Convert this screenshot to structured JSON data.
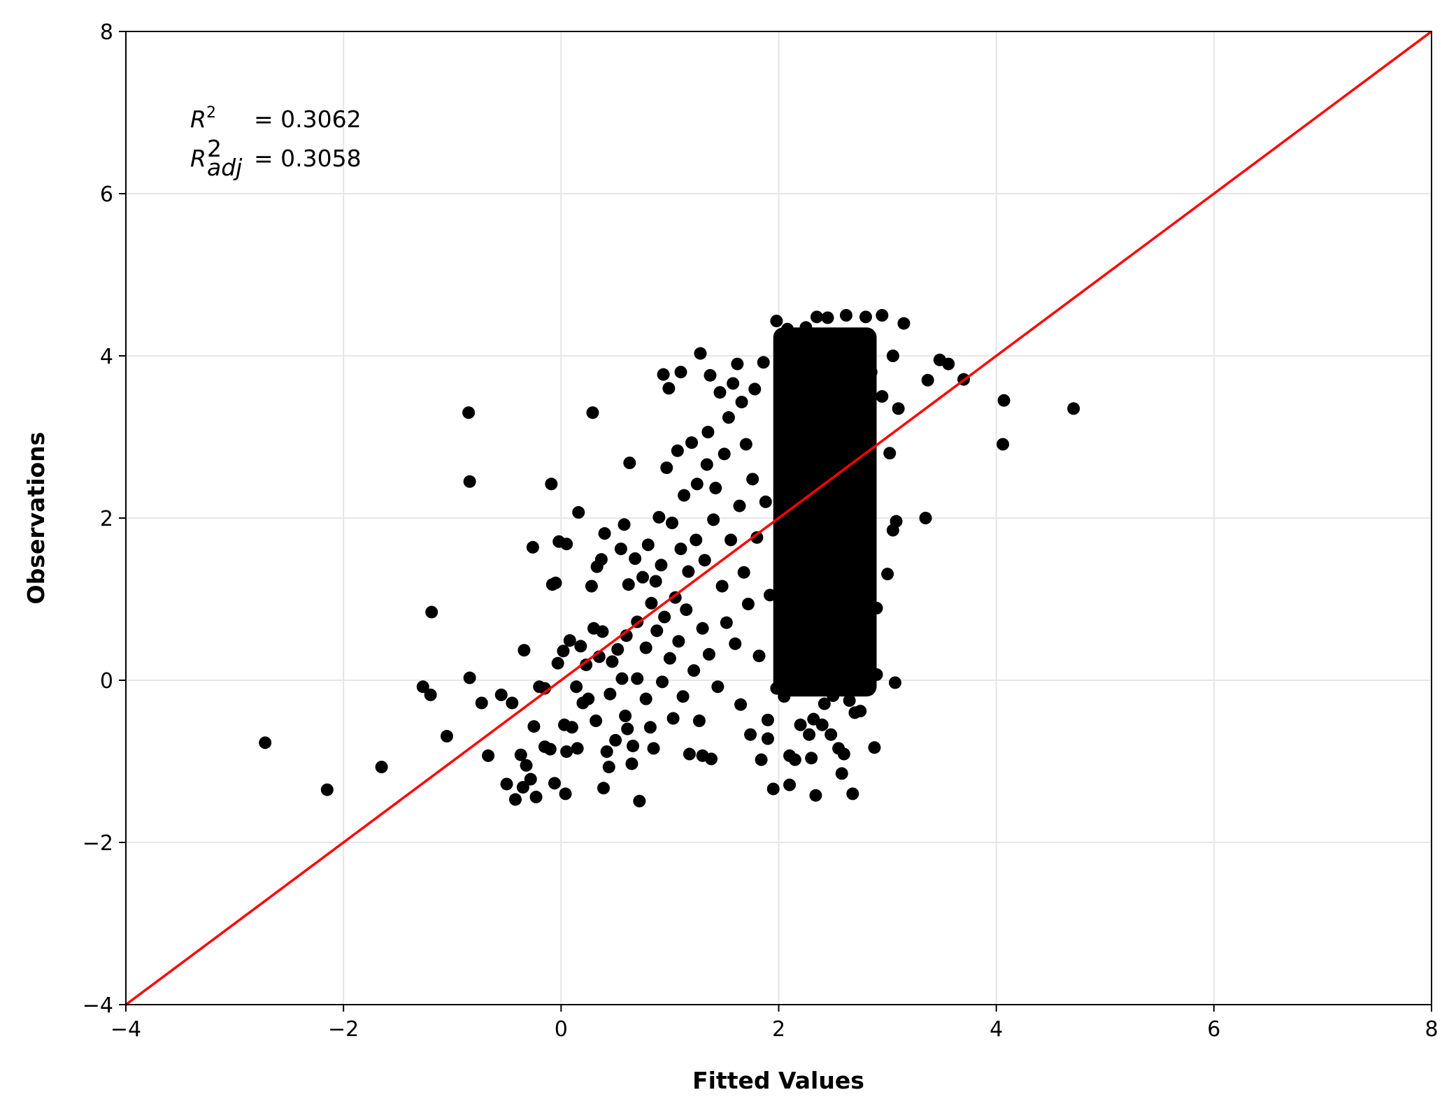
{
  "chart_data": {
    "type": "scatter",
    "title": "",
    "xlabel": "Fitted Values",
    "ylabel": "Observations",
    "xlim": [
      -4,
      8
    ],
    "ylim": [
      -4,
      8
    ],
    "x_ticks": [
      -4,
      -2,
      0,
      2,
      4,
      6,
      8
    ],
    "y_ticks": [
      -4,
      -2,
      0,
      2,
      4,
      6,
      8
    ],
    "x_tick_labels": [
      "−4",
      "−2",
      "0",
      "2",
      "4",
      "6",
      "8"
    ],
    "y_tick_labels": [
      "−4",
      "−2",
      "0",
      "2",
      "4",
      "6",
      "8"
    ],
    "grid": true,
    "colors": {
      "points": "#000000",
      "reference_line": "#ff0000",
      "grid": "#e6e6e6"
    },
    "annotations": {
      "r2_symbol": "R",
      "r2_sup": "2",
      "r2_text": "= 0.3062",
      "r2adj_symbol": "R",
      "r2adj_sup": "2",
      "r2adj_sub": "adj",
      "r2adj_text": "= 0.3058"
    },
    "reference_line": {
      "x": [
        -4,
        8
      ],
      "y": [
        -4,
        8
      ]
    },
    "dense_cluster": {
      "x_range": [
        1.95,
        2.9
      ],
      "y_range": [
        -0.2,
        4.35
      ]
    },
    "points": [
      [
        -2.72,
        -0.77
      ],
      [
        -2.15,
        -1.35
      ],
      [
        -1.65,
        -1.07
      ],
      [
        -1.27,
        -0.08
      ],
      [
        -1.2,
        -0.18
      ],
      [
        -1.19,
        0.84
      ],
      [
        -1.05,
        -0.69
      ],
      [
        -0.85,
        3.3
      ],
      [
        -0.84,
        2.45
      ],
      [
        -0.84,
        0.03
      ],
      [
        -0.73,
        -0.28
      ],
      [
        -0.67,
        -0.93
      ],
      [
        -0.55,
        -0.18
      ],
      [
        -0.5,
        -1.28
      ],
      [
        -0.45,
        -0.28
      ],
      [
        -0.42,
        -1.47
      ],
      [
        -0.37,
        -0.92
      ],
      [
        -0.35,
        -1.32
      ],
      [
        -0.34,
        0.37
      ],
      [
        -0.32,
        -1.05
      ],
      [
        -0.28,
        -1.22
      ],
      [
        -0.26,
        1.64
      ],
      [
        -0.25,
        -0.57
      ],
      [
        -0.23,
        -1.44
      ],
      [
        -0.2,
        -0.08
      ],
      [
        -0.15,
        -0.1
      ],
      [
        -0.15,
        -0.82
      ],
      [
        -0.1,
        -0.85
      ],
      [
        -0.09,
        2.42
      ],
      [
        -0.08,
        1.18
      ],
      [
        -0.06,
        -1.27
      ],
      [
        -0.05,
        1.2
      ],
      [
        -0.03,
        0.21
      ],
      [
        -0.02,
        1.71
      ],
      [
        0.02,
        0.36
      ],
      [
        0.03,
        -0.55
      ],
      [
        0.04,
        -1.4
      ],
      [
        0.05,
        1.68
      ],
      [
        0.05,
        -0.88
      ],
      [
        0.08,
        0.49
      ],
      [
        0.1,
        -0.58
      ],
      [
        0.14,
        -0.08
      ],
      [
        0.15,
        -0.84
      ],
      [
        0.16,
        2.07
      ],
      [
        0.18,
        0.42
      ],
      [
        0.2,
        -0.28
      ],
      [
        0.23,
        0.19
      ],
      [
        0.25,
        -0.23
      ],
      [
        0.28,
        1.16
      ],
      [
        0.29,
        3.3
      ],
      [
        0.3,
        0.64
      ],
      [
        0.32,
        -0.5
      ],
      [
        0.33,
        1.4
      ],
      [
        0.35,
        0.29
      ],
      [
        0.37,
        1.49
      ],
      [
        0.38,
        0.6
      ],
      [
        0.39,
        -1.33
      ],
      [
        0.4,
        1.81
      ],
      [
        0.42,
        -0.88
      ],
      [
        0.44,
        -1.07
      ],
      [
        0.45,
        -0.17
      ],
      [
        0.47,
        0.23
      ],
      [
        0.5,
        -0.74
      ],
      [
        0.52,
        0.38
      ],
      [
        0.55,
        1.62
      ],
      [
        0.56,
        0.02
      ],
      [
        0.58,
        1.92
      ],
      [
        0.59,
        -0.44
      ],
      [
        0.6,
        0.55
      ],
      [
        0.61,
        -0.6
      ],
      [
        0.62,
        1.18
      ],
      [
        0.63,
        2.68
      ],
      [
        0.65,
        -1.03
      ],
      [
        0.66,
        -0.81
      ],
      [
        0.68,
        1.5
      ],
      [
        0.7,
        0.72
      ],
      [
        0.7,
        0.02
      ],
      [
        0.72,
        -1.49
      ],
      [
        0.75,
        1.27
      ],
      [
        0.78,
        -0.23
      ],
      [
        0.78,
        0.4
      ],
      [
        0.8,
        1.67
      ],
      [
        0.82,
        -0.58
      ],
      [
        0.83,
        0.95
      ],
      [
        0.85,
        -0.84
      ],
      [
        0.87,
        1.22
      ],
      [
        0.88,
        0.61
      ],
      [
        0.9,
        2.01
      ],
      [
        0.92,
        1.42
      ],
      [
        0.93,
        -0.02
      ],
      [
        0.94,
        3.77
      ],
      [
        0.95,
        0.78
      ],
      [
        0.97,
        2.62
      ],
      [
        0.99,
        3.6
      ],
      [
        1.0,
        0.27
      ],
      [
        1.02,
        1.94
      ],
      [
        1.03,
        -0.47
      ],
      [
        1.05,
        1.02
      ],
      [
        1.07,
        2.83
      ],
      [
        1.08,
        0.48
      ],
      [
        1.1,
        3.8
      ],
      [
        1.1,
        1.62
      ],
      [
        1.12,
        -0.2
      ],
      [
        1.13,
        2.28
      ],
      [
        1.15,
        0.87
      ],
      [
        1.17,
        1.34
      ],
      [
        1.18,
        -0.91
      ],
      [
        1.2,
        2.93
      ],
      [
        1.22,
        0.12
      ],
      [
        1.24,
        1.73
      ],
      [
        1.25,
        2.42
      ],
      [
        1.27,
        -0.5
      ],
      [
        1.28,
        4.03
      ],
      [
        1.3,
        0.64
      ],
      [
        1.3,
        -0.93
      ],
      [
        1.32,
        1.48
      ],
      [
        1.34,
        2.66
      ],
      [
        1.35,
        3.06
      ],
      [
        1.36,
        0.32
      ],
      [
        1.37,
        3.76
      ],
      [
        1.38,
        -0.97
      ],
      [
        1.4,
        1.98
      ],
      [
        1.42,
        2.37
      ],
      [
        1.44,
        -0.08
      ],
      [
        1.46,
        3.55
      ],
      [
        1.48,
        1.16
      ],
      [
        1.5,
        2.79
      ],
      [
        1.52,
        0.71
      ],
      [
        1.54,
        3.24
      ],
      [
        1.56,
        1.73
      ],
      [
        1.58,
        3.66
      ],
      [
        1.6,
        0.45
      ],
      [
        1.62,
        3.9
      ],
      [
        1.64,
        2.15
      ],
      [
        1.65,
        -0.3
      ],
      [
        1.66,
        3.43
      ],
      [
        1.68,
        1.33
      ],
      [
        1.7,
        2.91
      ],
      [
        1.72,
        0.94
      ],
      [
        1.74,
        -0.67
      ],
      [
        1.76,
        2.48
      ],
      [
        1.78,
        3.59
      ],
      [
        1.8,
        1.76
      ],
      [
        1.82,
        0.3
      ],
      [
        1.84,
        -0.98
      ],
      [
        1.86,
        3.92
      ],
      [
        1.88,
        2.2
      ],
      [
        1.9,
        -0.49
      ],
      [
        1.9,
        -0.72
      ],
      [
        1.92,
        1.05
      ],
      [
        1.95,
        -1.34
      ],
      [
        1.98,
        -0.1
      ],
      [
        1.98,
        4.43
      ],
      [
        2.02,
        0.46
      ],
      [
        2.05,
        -0.2
      ],
      [
        2.08,
        4.33
      ],
      [
        2.1,
        -0.93
      ],
      [
        2.12,
        0.28
      ],
      [
        2.1,
        -1.29
      ],
      [
        2.15,
        -0.98
      ],
      [
        2.2,
        -0.55
      ],
      [
        2.25,
        4.35
      ],
      [
        2.28,
        -0.67
      ],
      [
        2.3,
        -0.96
      ],
      [
        2.32,
        -0.48
      ],
      [
        2.34,
        -1.42
      ],
      [
        2.35,
        4.48
      ],
      [
        2.38,
        0.18
      ],
      [
        2.4,
        -0.55
      ],
      [
        2.42,
        -0.29
      ],
      [
        2.45,
        4.47
      ],
      [
        2.48,
        -0.67
      ],
      [
        2.5,
        -0.19
      ],
      [
        2.55,
        -0.84
      ],
      [
        2.58,
        -1.15
      ],
      [
        2.6,
        -0.91
      ],
      [
        2.62,
        4.5
      ],
      [
        2.65,
        -0.25
      ],
      [
        2.68,
        -1.4
      ],
      [
        2.7,
        -0.4
      ],
      [
        2.72,
        0.7
      ],
      [
        2.75,
        -0.38
      ],
      [
        2.8,
        4.48
      ],
      [
        2.85,
        3.8
      ],
      [
        2.88,
        -0.83
      ],
      [
        2.9,
        0.07
      ],
      [
        2.9,
        0.89
      ],
      [
        2.95,
        4.5
      ],
      [
        2.95,
        3.5
      ],
      [
        3.0,
        1.31
      ],
      [
        3.02,
        2.8
      ],
      [
        3.05,
        4.0
      ],
      [
        3.05,
        1.85
      ],
      [
        3.07,
        -0.03
      ],
      [
        3.08,
        1.96
      ],
      [
        3.1,
        3.35
      ],
      [
        3.15,
        4.4
      ],
      [
        3.35,
        2.0
      ],
      [
        3.37,
        3.7
      ],
      [
        3.48,
        3.95
      ],
      [
        3.56,
        3.9
      ],
      [
        3.7,
        3.71
      ],
      [
        4.06,
        2.91
      ],
      [
        4.07,
        3.45
      ],
      [
        4.71,
        3.35
      ]
    ]
  }
}
